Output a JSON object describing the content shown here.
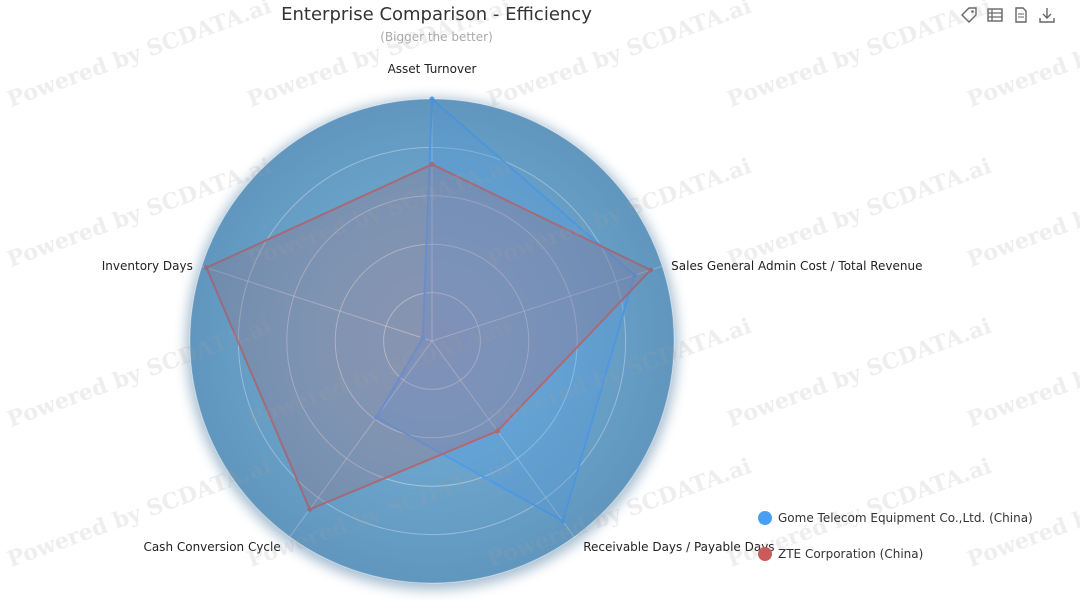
{
  "title": "Enterprise Comparison - Efficiency",
  "subtitle": "(Bigger the better)",
  "watermark_text": "Powered by SCDATA.ai",
  "toolbox": [
    {
      "icon": "tag-icon"
    },
    {
      "icon": "data-view-icon"
    },
    {
      "icon": "document-icon"
    },
    {
      "icon": "download-icon"
    }
  ],
  "chart_data": {
    "type": "radar",
    "title": "Enterprise Comparison - Efficiency",
    "subtitle": "(Bigger the better)",
    "indicators": [
      "Asset Turnover",
      "Sales General Admin Cost / Total Revenue",
      "Receivable Days / Payable Days",
      "Cash Conversion Cycle",
      "Inventory Days"
    ],
    "max": 1,
    "split_number": 5,
    "series": [
      {
        "name": "Gome Telecom Equipment Co.,Ltd. (China)",
        "color": "#4a9ff5",
        "values": [
          1.0,
          0.88,
          0.92,
          0.39,
          0.04
        ]
      },
      {
        "name": "ZTE Corporation (China)",
        "color": "#c95b5b",
        "values": [
          0.73,
          0.95,
          0.46,
          0.86,
          0.98
        ]
      }
    ],
    "legend_position": "bottom-right",
    "radar_fill": "#6fa9d0"
  }
}
